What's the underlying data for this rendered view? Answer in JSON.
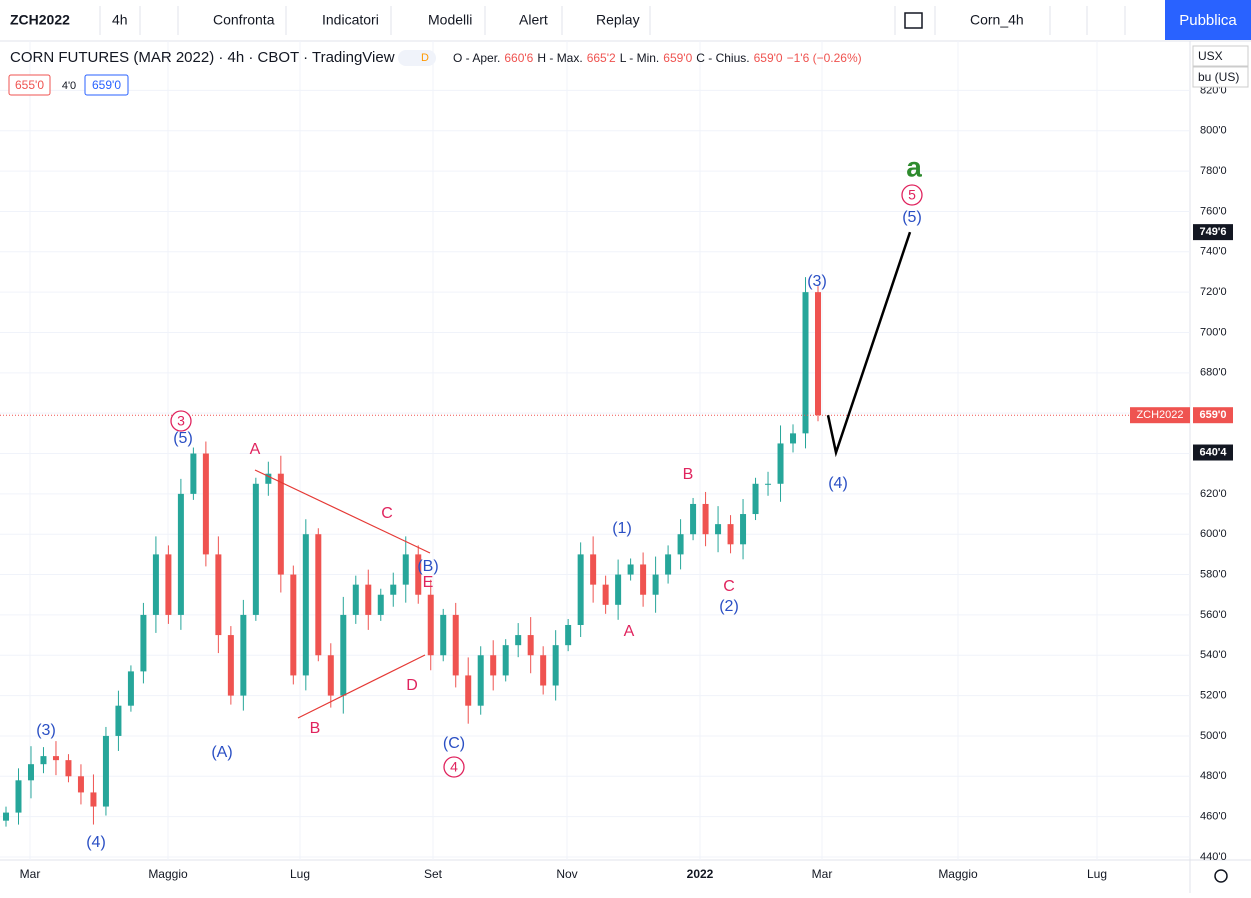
{
  "toolbar": {
    "symbol": "ZCH2022",
    "interval": "4h",
    "buttons": [
      "Confronta",
      "Indicatori",
      "Modelli",
      "Alert",
      "Replay"
    ],
    "layout_name": "Corn_4h",
    "publish": "Pubblica"
  },
  "legend": {
    "title": "CORN FUTURES (MAR 2022) · 4h · CBOT · TradingView",
    "badge": "D",
    "open_label": "O - Aper.",
    "open": "660'6",
    "high_label": "H - Max.",
    "high": "665'2",
    "low_label": "L - Min.",
    "low": "659'0",
    "close_label": "C - Chius.",
    "close": "659'0",
    "change": "−1'6 (−0.26%)",
    "bid": "655'0",
    "spread": "4'0",
    "ask": "659'0"
  },
  "units": {
    "currency": "USX",
    "unit": "bu (US)"
  },
  "chart_data": {
    "type": "candlestick",
    "values": [
      462,
      478,
      486,
      490,
      488,
      480,
      472,
      465,
      500,
      515,
      532,
      560,
      590,
      560,
      620,
      640,
      590,
      550,
      520,
      560,
      625,
      630,
      580,
      530,
      600,
      540,
      520,
      560,
      575,
      560,
      570,
      575,
      590,
      570,
      540,
      560,
      530,
      515,
      540,
      530,
      545,
      550,
      540,
      525,
      545,
      555,
      590,
      575,
      565,
      580,
      585,
      570,
      580,
      590,
      600,
      615,
      600,
      605,
      595,
      610,
      625,
      625,
      645,
      650,
      720,
      659
    ],
    "ylim": [
      438.5,
      844.5
    ],
    "yticks": [
      {
        "value": 440,
        "label": "440'0"
      },
      {
        "value": 460,
        "label": "460'0"
      },
      {
        "value": 480,
        "label": "480'0"
      },
      {
        "value": 500,
        "label": "500'0"
      },
      {
        "value": 520,
        "label": "520'0"
      },
      {
        "value": 540,
        "label": "540'0"
      },
      {
        "value": 560,
        "label": "560'0"
      },
      {
        "value": 580,
        "label": "580'0"
      },
      {
        "value": 600,
        "label": "600'0"
      },
      {
        "value": 620,
        "label": "620'0"
      },
      {
        "value": 640,
        "label": "640'0"
      },
      {
        "value": 660,
        "label": "660'0"
      },
      {
        "value": 680,
        "label": "680'0"
      },
      {
        "value": 700,
        "label": "700'0"
      },
      {
        "value": 720,
        "label": "720'0"
      },
      {
        "value": 740,
        "label": "740'0"
      },
      {
        "value": 760,
        "label": "760'0"
      },
      {
        "value": 780,
        "label": "780'0"
      },
      {
        "value": 800,
        "label": "800'0"
      },
      {
        "value": 820,
        "label": "820'0"
      }
    ],
    "x_labels": [
      "Mar",
      "Maggio",
      "Lug",
      "Set",
      "Nov",
      "2022",
      "Mar",
      "Maggio",
      "Lug"
    ],
    "price_labels": [
      {
        "value": 749.75,
        "label": "749'6"
      },
      {
        "value": 640.5,
        "label": "640'4"
      },
      {
        "value": 659,
        "label": "659'0",
        "symbol": "ZCH2022"
      }
    ],
    "annotations": [
      {
        "text": "(3)",
        "color": "#2a4fc4"
      },
      {
        "text": "(4)",
        "color": "#2a4fc4"
      },
      {
        "text": "3",
        "color": "#e0245e"
      },
      {
        "text": "(5)",
        "color": "#2a4fc4"
      },
      {
        "text": "(A)",
        "color": "#2a4fc4"
      },
      {
        "text": "A",
        "color": "#e0245e"
      },
      {
        "text": "B",
        "color": "#e0245e"
      },
      {
        "text": "C",
        "color": "#e0245e"
      },
      {
        "text": "D",
        "color": "#e0245e"
      },
      {
        "text": "E",
        "color": "#e0245e"
      },
      {
        "text": "(B)",
        "color": "#2a4fc4"
      },
      {
        "text": "(C)",
        "color": "#2a4fc4"
      },
      {
        "text": "4",
        "color": "#e0245e"
      },
      {
        "text": "(1)",
        "color": "#2a4fc4"
      },
      {
        "text": "A",
        "color": "#e0245e"
      },
      {
        "text": "B",
        "color": "#e0245e"
      },
      {
        "text": "C",
        "color": "#e0245e"
      },
      {
        "text": "(2)",
        "color": "#2a4fc4"
      },
      {
        "text": "(3)",
        "color": "#2a4fc4"
      },
      {
        "text": "(4)",
        "color": "#2a4fc4"
      },
      {
        "text": "(5)",
        "color": "#2a4fc4"
      },
      {
        "text": "5",
        "color": "#e0245e"
      },
      {
        "text": "a",
        "color": "#2e8b2e"
      }
    ]
  }
}
